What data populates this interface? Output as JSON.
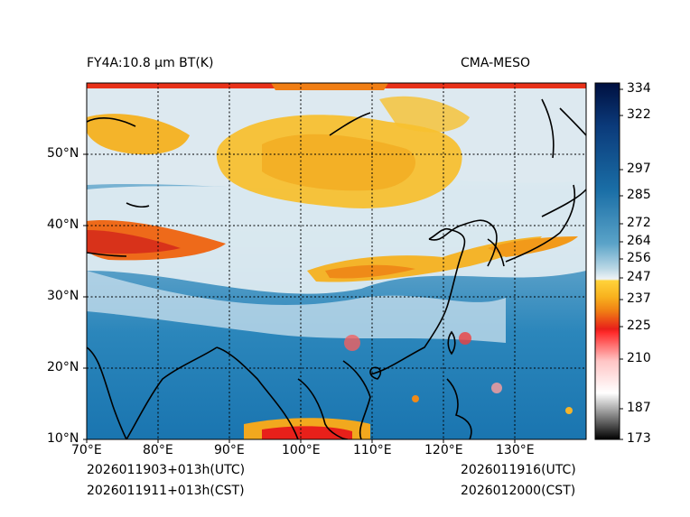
{
  "header": {
    "title_left": "FY4A:10.8 µm BT(K)",
    "title_right": "CMA-MESO"
  },
  "footer": {
    "utc_left": "2026011903+013h(UTC)",
    "cst_left": "2026011911+013h(CST)",
    "utc_right": "2026011916(UTC)",
    "cst_right": "2026012000(CST)"
  },
  "map": {
    "lon_range": [
      70,
      140
    ],
    "lat_range": [
      10,
      60
    ],
    "lon_ticks": [
      "70°E",
      "80°E",
      "90°E",
      "100°E",
      "110°E",
      "120°E",
      "130°E"
    ],
    "lat_ticks": [
      "10°N",
      "20°N",
      "30°N",
      "40°N",
      "50°N"
    ]
  },
  "colorbar": {
    "range": [
      173,
      336
    ],
    "ticks": [
      "334",
      "322",
      "297",
      "285",
      "272",
      "264",
      "256",
      "247",
      "237",
      "225",
      "210",
      "187",
      "173"
    ],
    "colors": {
      "very_warm": "#001a4d",
      "warm": "#1a75b0",
      "mild": "#a9cde0",
      "neutral": "#e6eef2",
      "cold_yellow": "#ffd23a",
      "cold_orange": "#f29a1a",
      "cold_red": "#e8201a",
      "very_cold": "#000000"
    }
  }
}
